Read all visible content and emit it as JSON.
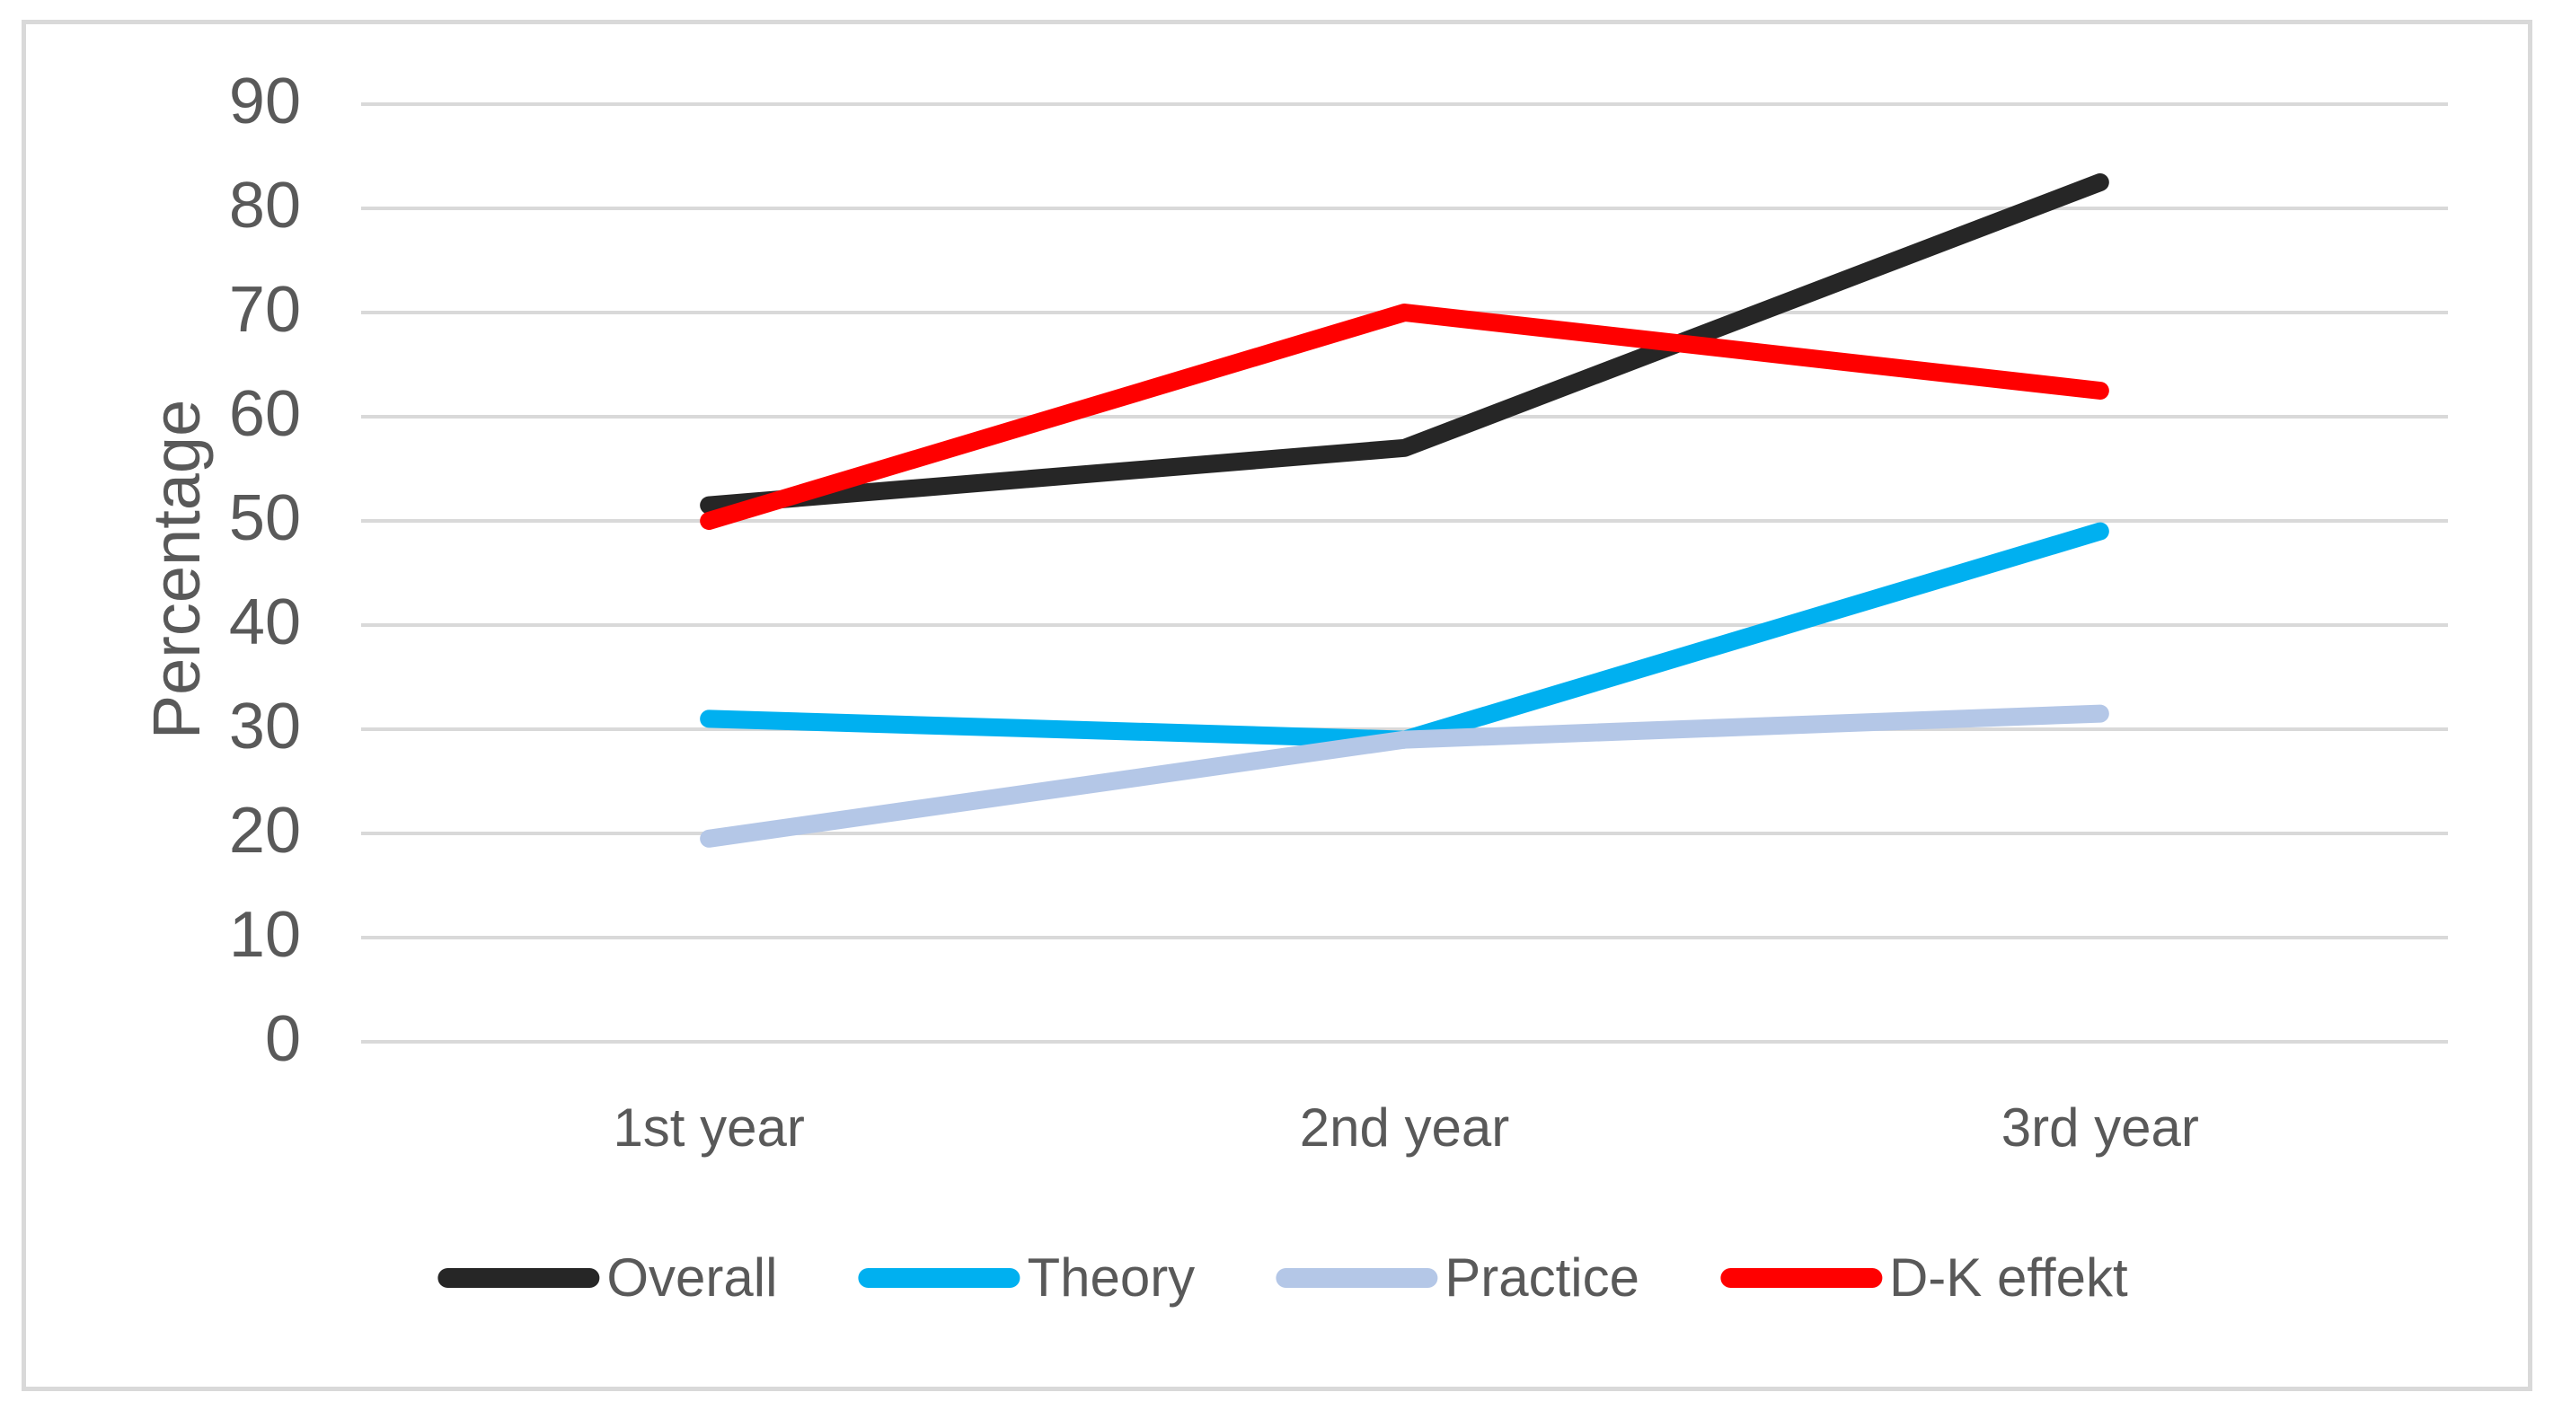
{
  "chart_data": {
    "type": "line",
    "title": "",
    "xlabel": "",
    "ylabel": "Percentage",
    "categories": [
      "1st year",
      "2nd year",
      "3rd year"
    ],
    "series": [
      {
        "name": "Overall",
        "color": "#262626",
        "values": [
          51.5,
          57,
          82.5
        ]
      },
      {
        "name": "Theory",
        "color": "#00B0F0",
        "values": [
          31,
          29,
          49
        ]
      },
      {
        "name": "Practice",
        "color": "#B4C7E7",
        "values": [
          19.5,
          29,
          31.5
        ]
      },
      {
        "name": "D-K effekt",
        "color": "#FF0000",
        "values": [
          50,
          70,
          62.5
        ]
      }
    ],
    "ylim": [
      0,
      90
    ],
    "yticks": [
      0,
      10,
      20,
      30,
      40,
      50,
      60,
      70,
      80,
      90
    ],
    "grid": true,
    "legend_position": "bottom"
  },
  "colors": {
    "grid": "#D9D9D9",
    "frame_border": "#D9D9D9",
    "axis_text": "#595959"
  }
}
